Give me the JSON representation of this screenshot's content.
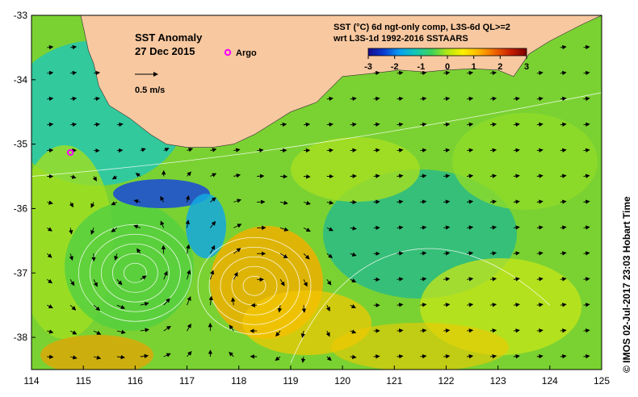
{
  "title": {
    "line1": "SST Anomaly",
    "line2": "27 Dec 2015"
  },
  "legend": {
    "argo_label": "Argo",
    "argo_color": "#ff00ff",
    "arrow_label": "0.5 m/s"
  },
  "colorbar": {
    "title_line1": "SST (°C) 6d ngt-only comp, L3S-6d QL>=2",
    "title_line2": "wrt L3S-1d 1992-2016 SSTAARS",
    "ticks": [
      "-3",
      "-2",
      "-1",
      "0",
      "1",
      "2",
      "3"
    ],
    "min": -3,
    "max": 3,
    "colors": [
      "#1a0a8c",
      "#0a3cd2",
      "#0aa0f0",
      "#14c8b4",
      "#3cd25a",
      "#b4e614",
      "#fff000",
      "#ffb400",
      "#f06400",
      "#c81e00",
      "#780000"
    ]
  },
  "credit": "© IMOS 02-Jul-2017 23:03 Hobart Time",
  "chart_data": {
    "type": "heatmap",
    "variable": "SST anomaly (°C)",
    "xlim": [
      114,
      125
    ],
    "ylim": [
      -38.5,
      -33
    ],
    "x_ticks": [
      "114",
      "115",
      "116",
      "117",
      "118",
      "119",
      "120",
      "121",
      "122",
      "123",
      "124",
      "125"
    ],
    "y_ticks": [
      "-33",
      "-34",
      "-35",
      "-36",
      "-37",
      "-38"
    ],
    "land_color": "#f8c8a0",
    "argo_floats": [
      {
        "lon": 114.75,
        "lat": -35.13
      }
    ],
    "eddies": [
      {
        "lon": 116.0,
        "lat": -37.0,
        "sense": "anticlockwise"
      },
      {
        "lon": 118.3,
        "lat": -37.2,
        "sense": "clockwise"
      }
    ],
    "coastline": [
      [
        114.95,
        -33.0
      ],
      [
        115.1,
        -33.55
      ],
      [
        115.2,
        -33.75
      ],
      [
        115.3,
        -34.1
      ],
      [
        115.5,
        -34.4
      ],
      [
        115.9,
        -34.6
      ],
      [
        116.3,
        -34.85
      ],
      [
        116.6,
        -35.0
      ],
      [
        117.0,
        -35.05
      ],
      [
        117.5,
        -35.05
      ],
      [
        117.9,
        -35.0
      ],
      [
        118.3,
        -34.85
      ],
      [
        118.6,
        -34.7
      ],
      [
        119.0,
        -34.5
      ],
      [
        119.5,
        -34.35
      ],
      [
        120.0,
        -33.95
      ],
      [
        120.6,
        -33.9
      ],
      [
        121.1,
        -33.85
      ],
      [
        121.6,
        -33.88
      ],
      [
        122.0,
        -33.85
      ],
      [
        122.5,
        -33.83
      ],
      [
        123.0,
        -33.85
      ],
      [
        123.3,
        -33.95
      ],
      [
        123.6,
        -33.6
      ],
      [
        124.0,
        -33.4
      ],
      [
        124.6,
        -33.15
      ],
      [
        125.0,
        -33.0
      ]
    ]
  }
}
